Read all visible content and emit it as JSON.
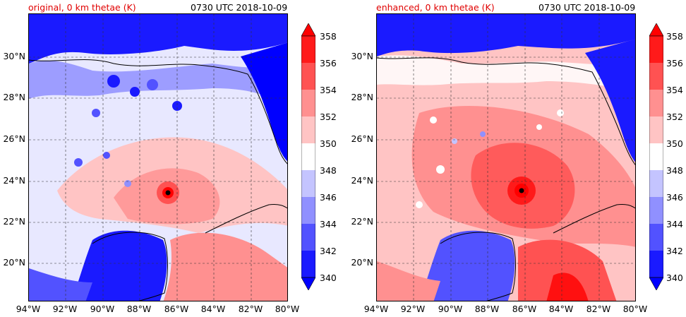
{
  "panels": [
    {
      "id": "left",
      "title": "original, 0 km thetae (K)",
      "time": "0730 UTC 2018-10-09"
    },
    {
      "id": "right",
      "title": "enhanced, 0 km thetae (K)",
      "time": "0730 UTC 2018-10-09"
    }
  ],
  "lat_labels": [
    "30°N",
    "28°N",
    "26°N",
    "24°N",
    "22°N",
    "20°N"
  ],
  "lon_labels": [
    "94°W",
    "92°W",
    "90°W",
    "88°W",
    "86°W",
    "84°W",
    "82°W",
    "80°W"
  ],
  "colorbar": {
    "labels": [
      "358",
      "356",
      "354",
      "352",
      "350",
      "348",
      "346",
      "344",
      "342",
      "340"
    ],
    "colors": [
      "#ff0000",
      "#ff1a1a",
      "#ff5252",
      "#ff9090",
      "#ffc4c4",
      "#ffffff",
      "#c4c4ff",
      "#9090ff",
      "#5252ff",
      "#1a1aff",
      "#0000ff"
    ]
  }
}
